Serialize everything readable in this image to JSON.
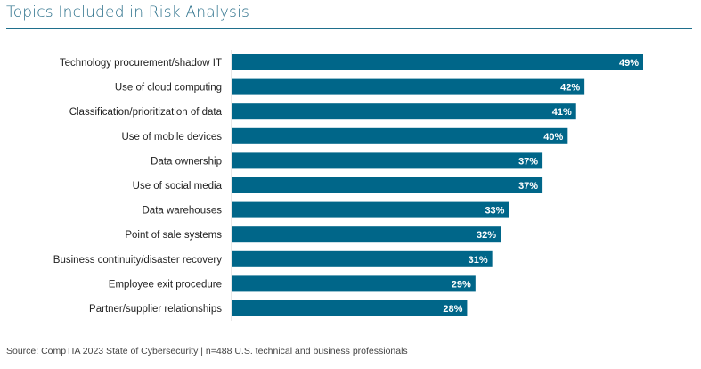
{
  "chart_data": {
    "type": "bar",
    "orientation": "horizontal",
    "title": "Topics Included in Risk Analysis",
    "categories": [
      "Technology procurement/shadow IT",
      "Use of cloud computing",
      "Classification/prioritization of data",
      "Use of mobile devices",
      "Data ownership",
      "Use of social media",
      "Data warehouses",
      "Point of sale systems",
      "Business continuity/disaster recovery",
      "Employee exit procedure",
      "Partner/supplier relationships"
    ],
    "values": [
      49,
      42,
      41,
      40,
      37,
      37,
      33,
      32,
      31,
      29,
      28
    ],
    "value_format": "{v}%",
    "xlim": [
      0,
      50
    ],
    "grid": false,
    "bar_color": "#006689",
    "label_color": "#ffffff"
  },
  "source": "Source: CompTIA 2023 State of Cybersecurity | n=488 U.S. technical and business professionals"
}
